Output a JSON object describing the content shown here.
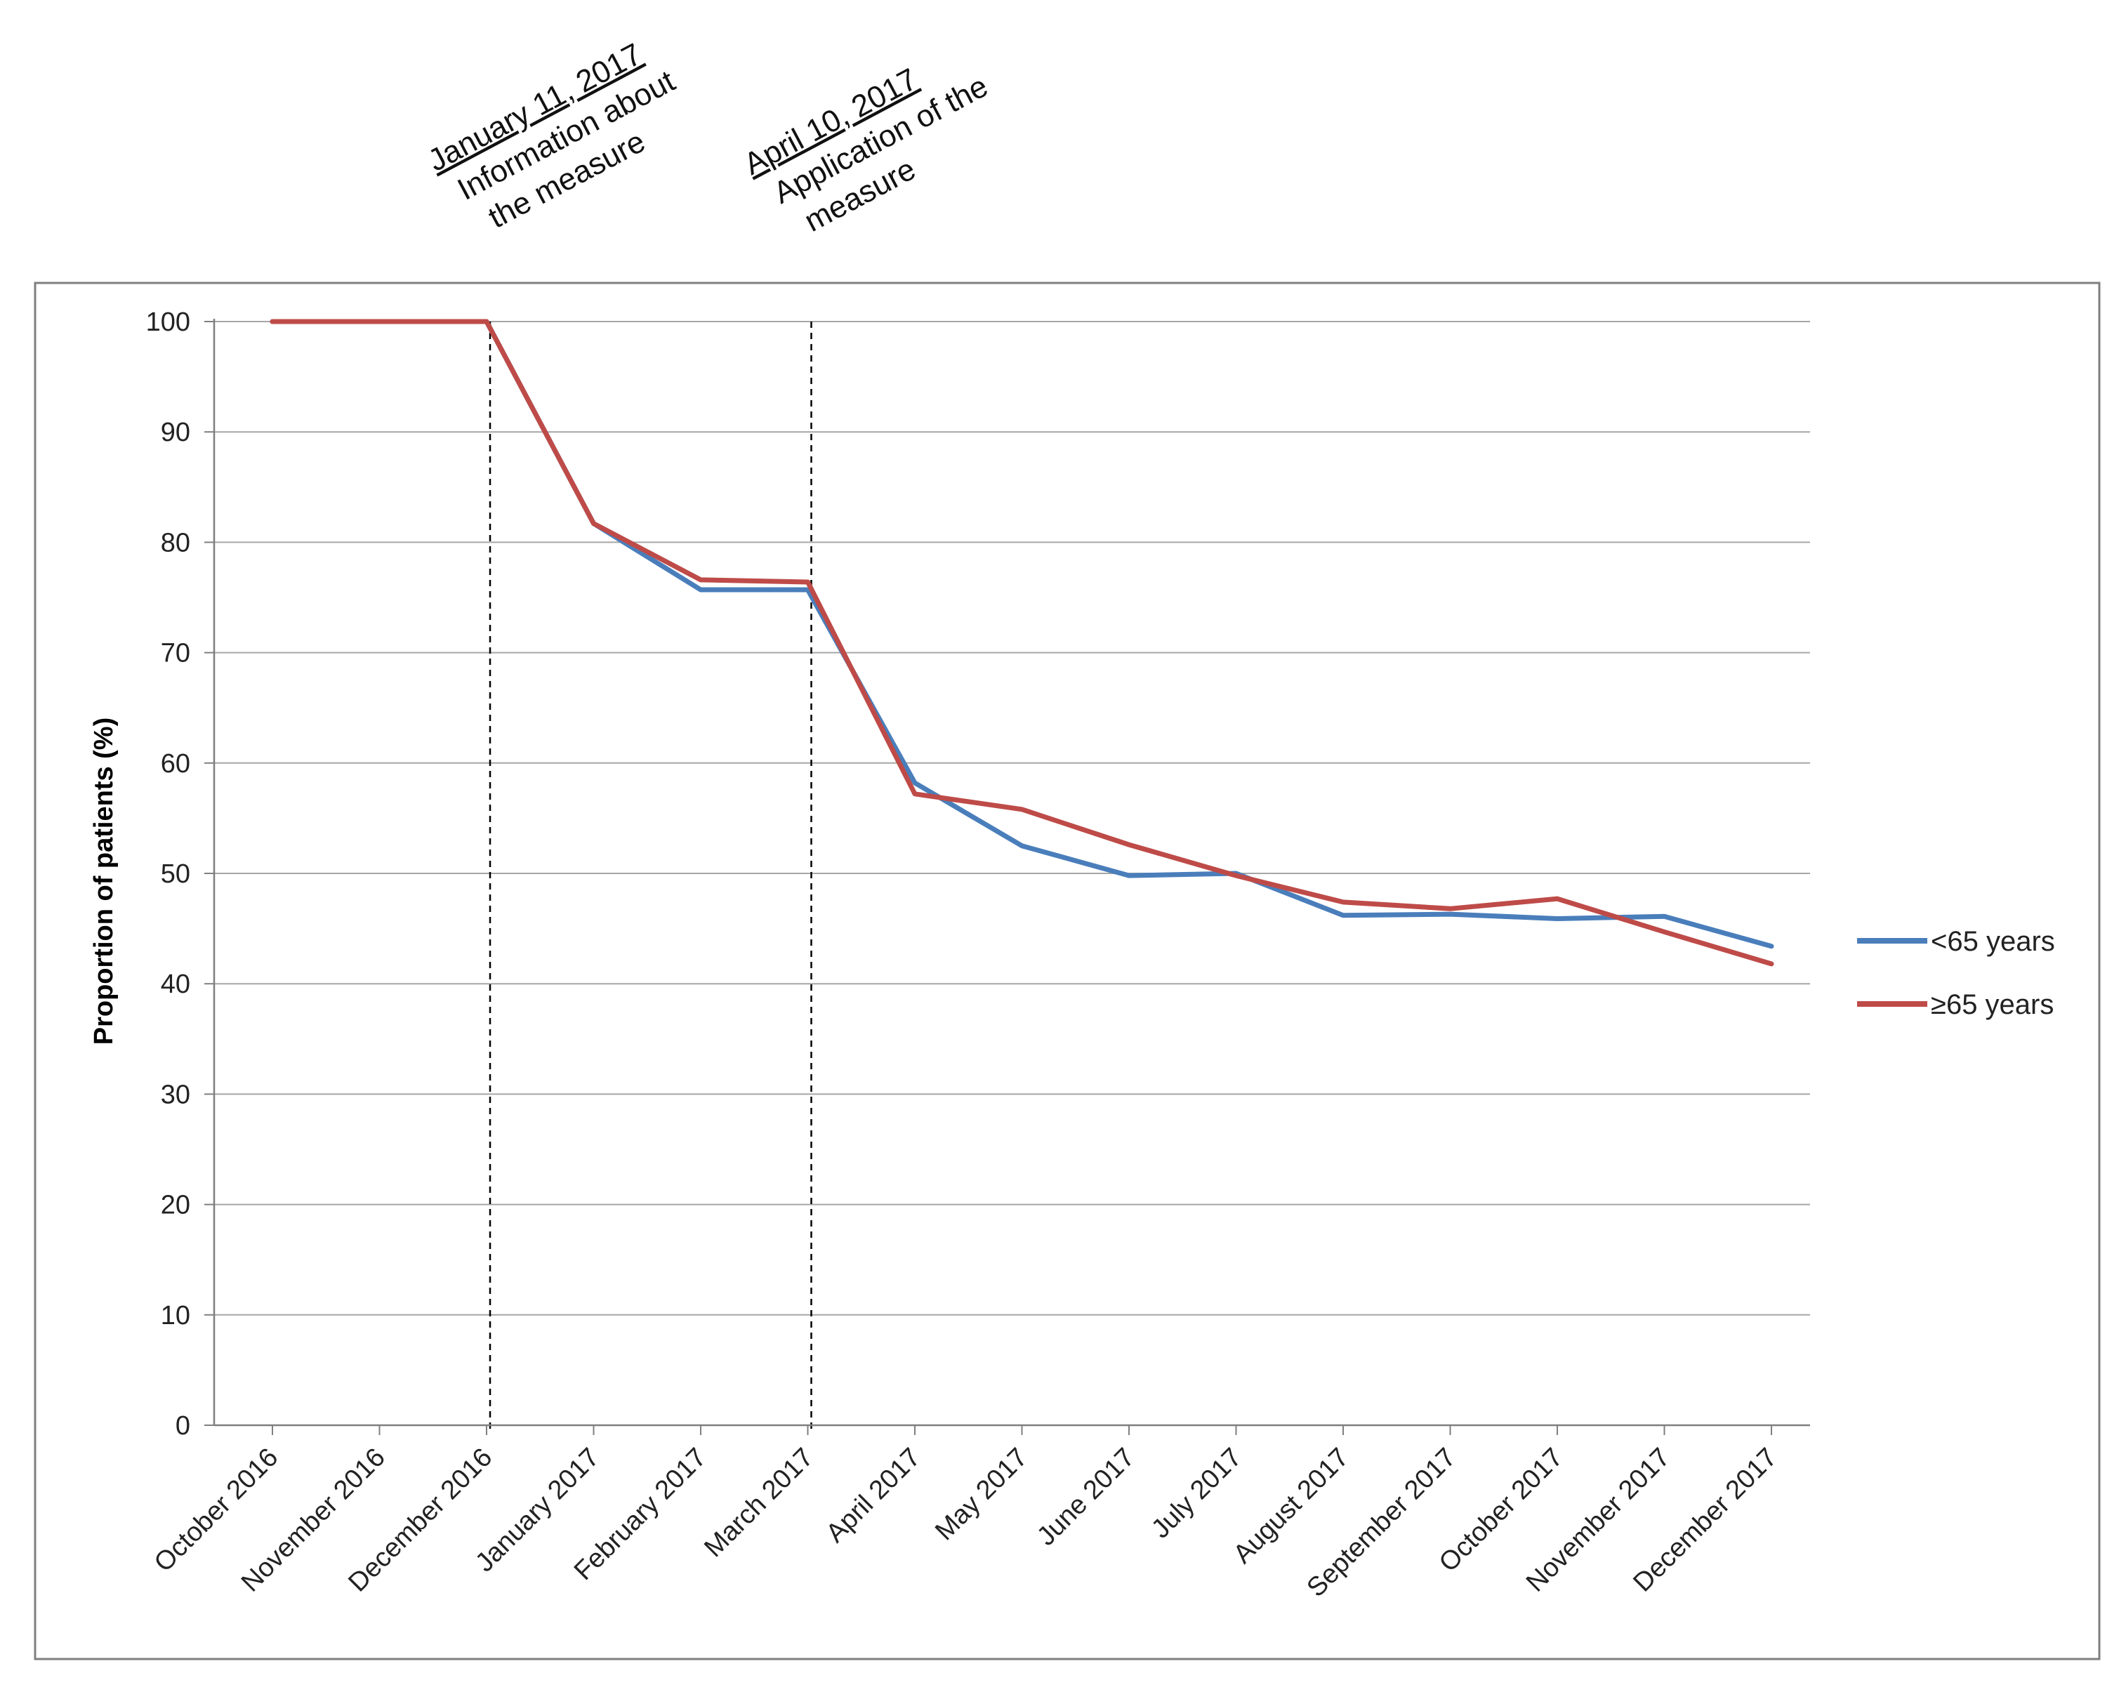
{
  "chart_data": {
    "type": "line",
    "title": "",
    "xlabel": "",
    "ylabel": "Proportion of patients (%)",
    "ylim": [
      0,
      100
    ],
    "yticks": [
      0,
      10,
      20,
      30,
      40,
      50,
      60,
      70,
      80,
      90,
      100
    ],
    "grid": true,
    "legend_position": "right",
    "categories": [
      "October 2016",
      "November 2016",
      "December 2016",
      "January 2017",
      "February 2017",
      "March 2017",
      "April 2017",
      "May 2017",
      "June 2017",
      "July 2017",
      "August 2017",
      "September 2017",
      "October 2017",
      "November 2017",
      "December 2017"
    ],
    "series": [
      {
        "name": "<65 years",
        "color": "#4a7ebb",
        "values": [
          100,
          100,
          100,
          81.7,
          75.7,
          75.7,
          58.2,
          52.5,
          49.8,
          50,
          46.2,
          46.3,
          45.9,
          46.1,
          43.4
        ]
      },
      {
        "name": "≥65 years",
        "color": "#be4b48",
        "values": [
          100,
          100,
          100,
          81.7,
          76.6,
          76.4,
          57.2,
          55.8,
          52.6,
          49.8,
          47.4,
          46.8,
          47.7,
          44.7,
          41.8
        ]
      }
    ],
    "annotations": [
      {
        "date": "January 11, 2017",
        "text_lines": [
          "Information  about",
          "the measure"
        ],
        "at_category": "December 2016"
      },
      {
        "date": "April 10, 2017",
        "text_lines": [
          "Application of the",
          "measure"
        ],
        "at_category": "March 2017"
      }
    ]
  }
}
